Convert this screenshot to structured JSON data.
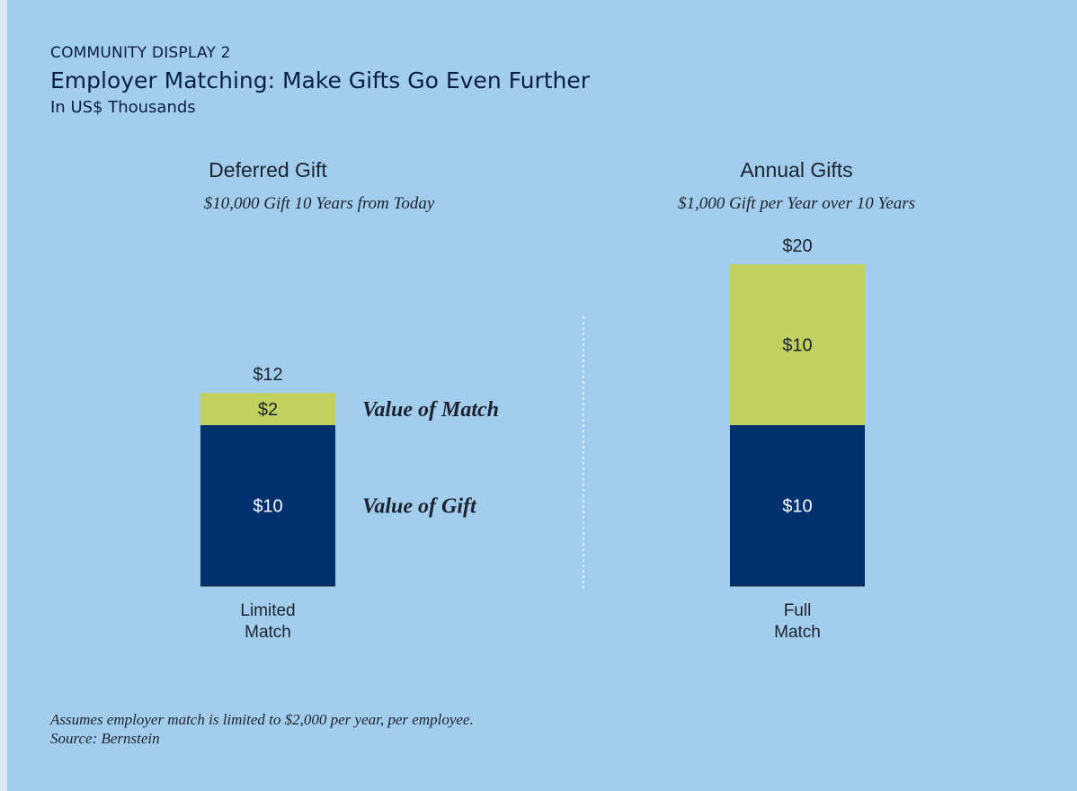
{
  "header": {
    "eyebrow": "COMMUNITY DISPLAY 2",
    "title": "Employer Matching: Make Gifts Go Even Further",
    "subtitle": "In US$ Thousands"
  },
  "panels": [
    {
      "title": "Deferred Gift",
      "subtitle": "$10,000 Gift 10 Years from Today"
    },
    {
      "title": "Annual Gifts",
      "subtitle": "$1,000 Gift per Year over 10 Years"
    }
  ],
  "chart_data": {
    "type": "bar",
    "stacked": true,
    "categories": [
      [
        "Limited",
        "Match"
      ],
      [
        "Full",
        "Match"
      ]
    ],
    "series": [
      {
        "name": "Value of Gift",
        "values": [
          10,
          10
        ],
        "labels": [
          "$10",
          "$10"
        ],
        "color": "#00316f"
      },
      {
        "name": "Value of Match",
        "values": [
          2,
          10
        ],
        "labels": [
          "$2",
          "$10"
        ],
        "color": "#c0d160"
      }
    ],
    "totals": [
      "$12",
      "$20"
    ],
    "ylim": [
      0,
      20
    ],
    "grid": false
  },
  "footer": {
    "note": "Assumes employer match is limited to $2,000 per year, per employee.",
    "source": "Source: Bernstein"
  }
}
